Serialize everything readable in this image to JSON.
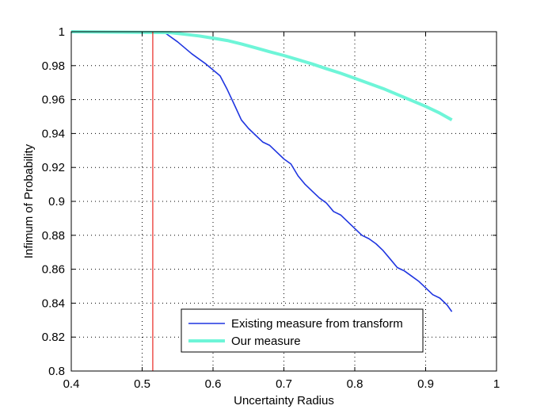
{
  "chart_data": {
    "type": "line",
    "xlabel": "Uncertainty Radius",
    "ylabel": "Infimum of Probability",
    "xlim": [
      0.4,
      1.0
    ],
    "ylim": [
      0.8,
      1.0
    ],
    "x_ticks": [
      "0.4",
      "0.5",
      "0.6",
      "0.7",
      "0.8",
      "0.9",
      "1"
    ],
    "y_ticks": [
      "0.8",
      "0.82",
      "0.84",
      "0.86",
      "0.88",
      "0.9",
      "0.92",
      "0.94",
      "0.96",
      "0.98",
      "1"
    ],
    "grid": true,
    "legend_position": "bottom-center",
    "vertical_line": {
      "x": 0.515,
      "color": "#e8261f"
    },
    "series": [
      {
        "name": "Existing measure from transform",
        "color": "#1f35e0",
        "x": [
          0.4,
          0.53,
          0.55,
          0.57,
          0.59,
          0.61,
          0.62,
          0.63,
          0.64,
          0.65,
          0.66,
          0.67,
          0.68,
          0.69,
          0.7,
          0.71,
          0.72,
          0.73,
          0.74,
          0.75,
          0.76,
          0.77,
          0.78,
          0.79,
          0.8,
          0.81,
          0.82,
          0.83,
          0.84,
          0.85,
          0.86,
          0.87,
          0.88,
          0.89,
          0.9,
          0.91,
          0.92,
          0.93,
          0.937
        ],
        "values": [
          1.0,
          1.0,
          0.994,
          0.987,
          0.981,
          0.974,
          0.966,
          0.957,
          0.948,
          0.943,
          0.939,
          0.935,
          0.933,
          0.929,
          0.925,
          0.922,
          0.915,
          0.91,
          0.906,
          0.902,
          0.899,
          0.894,
          0.892,
          0.888,
          0.884,
          0.88,
          0.878,
          0.875,
          0.871,
          0.866,
          0.861,
          0.859,
          0.856,
          0.853,
          0.849,
          0.845,
          0.843,
          0.839,
          0.835
        ]
      },
      {
        "name": "Our measure",
        "color": "#6ef5d8",
        "x": [
          0.4,
          0.54,
          0.56,
          0.58,
          0.6,
          0.62,
          0.64,
          0.66,
          0.68,
          0.7,
          0.72,
          0.74,
          0.76,
          0.78,
          0.8,
          0.82,
          0.84,
          0.86,
          0.88,
          0.9,
          0.92,
          0.937
        ],
        "values": [
          1.0,
          0.9995,
          0.9985,
          0.9975,
          0.9962,
          0.9948,
          0.9928,
          0.9905,
          0.9882,
          0.986,
          0.9835,
          0.981,
          0.9782,
          0.9755,
          0.9725,
          0.9695,
          0.9665,
          0.963,
          0.9595,
          0.956,
          0.952,
          0.948
        ]
      }
    ]
  }
}
